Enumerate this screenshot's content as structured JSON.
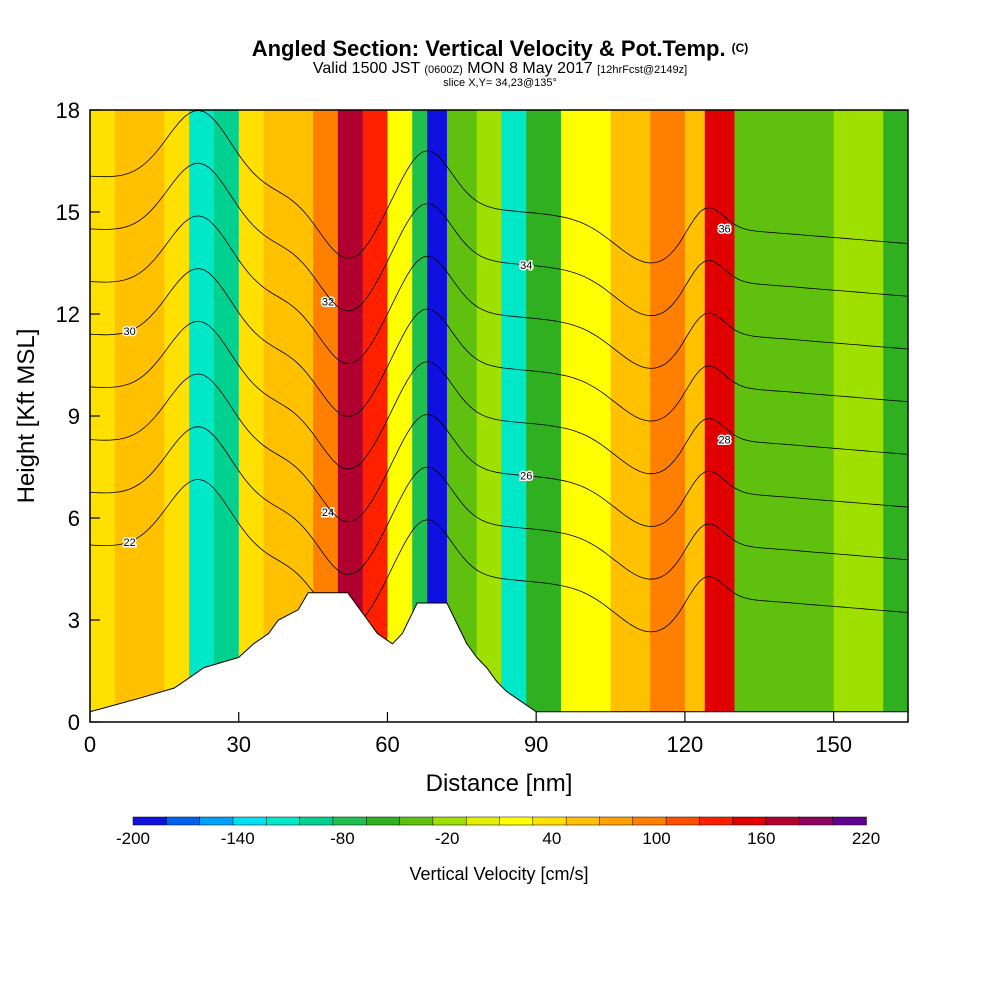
{
  "title": "Angled Section: Vertical Velocity & Pot.Temp.",
  "title_mark": "(C)",
  "subtitle_parts": [
    "Valid 1500 JST ",
    "(0600Z)",
    " MON 8 May 2017 ",
    "[12hrFcst@2149z]"
  ],
  "slice_text": "slice X,Y= 34,23@135°",
  "chart_data": {
    "type": "heatmap",
    "title": "Angled Section: Vertical Velocity & Pot.Temp.",
    "xlabel": "Distance [nm]",
    "ylabel": "Height [Kft MSL]",
    "xlim": [
      0,
      165
    ],
    "ylim": [
      0,
      18
    ],
    "x_ticks": [
      0,
      30,
      60,
      90,
      120,
      150
    ],
    "y_ticks": [
      0,
      3,
      6,
      9,
      12,
      15,
      18
    ],
    "colorbar": {
      "label": "Vertical Velocity [cm/s]",
      "tick_labels": [
        -200,
        -140,
        -80,
        -20,
        40,
        100,
        160,
        220
      ],
      "colors": [
        "#1010e0",
        "#0060f0",
        "#00a0f8",
        "#00e0f0",
        "#00e8c8",
        "#00d090",
        "#20c050",
        "#30b020",
        "#60c010",
        "#a0e000",
        "#e0f000",
        "#ffff00",
        "#ffe000",
        "#ffc000",
        "#ffa000",
        "#ff8000",
        "#ff5000",
        "#ff2000",
        "#e00000",
        "#b00030",
        "#900060",
        "#600090"
      ]
    },
    "vertical_velocity_bands": [
      {
        "x": 0,
        "v": 40
      },
      {
        "x": 5,
        "v": 55
      },
      {
        "x": 10,
        "v": 50
      },
      {
        "x": 15,
        "v": 30
      },
      {
        "x": 20,
        "v": -120
      },
      {
        "x": 25,
        "v": -90
      },
      {
        "x": 30,
        "v": 40
      },
      {
        "x": 35,
        "v": 55
      },
      {
        "x": 40,
        "v": 50
      },
      {
        "x": 45,
        "v": 100
      },
      {
        "x": 50,
        "v": 170
      },
      {
        "x": 55,
        "v": 130
      },
      {
        "x": 60,
        "v": 20
      },
      {
        "x": 65,
        "v": -80
      },
      {
        "x": 68,
        "v": -190
      },
      {
        "x": 72,
        "v": -40
      },
      {
        "x": 78,
        "v": -20
      },
      {
        "x": 83,
        "v": -110
      },
      {
        "x": 88,
        "v": -60
      },
      {
        "x": 95,
        "v": 10
      },
      {
        "x": 105,
        "v": 50
      },
      {
        "x": 113,
        "v": 95
      },
      {
        "x": 120,
        "v": 60
      },
      {
        "x": 124,
        "v": 150
      },
      {
        "x": 130,
        "v": -30
      },
      {
        "x": 140,
        "v": -40
      },
      {
        "x": 150,
        "v": -20
      },
      {
        "x": 160,
        "v": -50
      },
      {
        "x": 165,
        "v": 0
      }
    ],
    "potential_temperature_contours": [
      22,
      24,
      26,
      28,
      30,
      32,
      34,
      36
    ],
    "terrain": [
      {
        "x": 0,
        "h": 0.3
      },
      {
        "x": 10,
        "h": 0.7
      },
      {
        "x": 17,
        "h": 1.0
      },
      {
        "x": 20,
        "h": 1.3
      },
      {
        "x": 23,
        "h": 1.6
      },
      {
        "x": 30,
        "h": 1.9
      },
      {
        "x": 33,
        "h": 2.3
      },
      {
        "x": 36,
        "h": 2.6
      },
      {
        "x": 38,
        "h": 3.0
      },
      {
        "x": 42,
        "h": 3.3
      },
      {
        "x": 44,
        "h": 3.8
      },
      {
        "x": 52,
        "h": 3.8
      },
      {
        "x": 54,
        "h": 3.4
      },
      {
        "x": 56,
        "h": 3.0
      },
      {
        "x": 58,
        "h": 2.6
      },
      {
        "x": 61,
        "h": 2.3
      },
      {
        "x": 63,
        "h": 2.6
      },
      {
        "x": 66,
        "h": 3.5
      },
      {
        "x": 72,
        "h": 3.5
      },
      {
        "x": 74,
        "h": 2.9
      },
      {
        "x": 76,
        "h": 2.3
      },
      {
        "x": 78,
        "h": 1.9
      },
      {
        "x": 80,
        "h": 1.6
      },
      {
        "x": 82,
        "h": 1.2
      },
      {
        "x": 84,
        "h": 0.9
      },
      {
        "x": 86,
        "h": 0.7
      },
      {
        "x": 90,
        "h": 0.3
      },
      {
        "x": 165,
        "h": 0.3
      }
    ]
  }
}
